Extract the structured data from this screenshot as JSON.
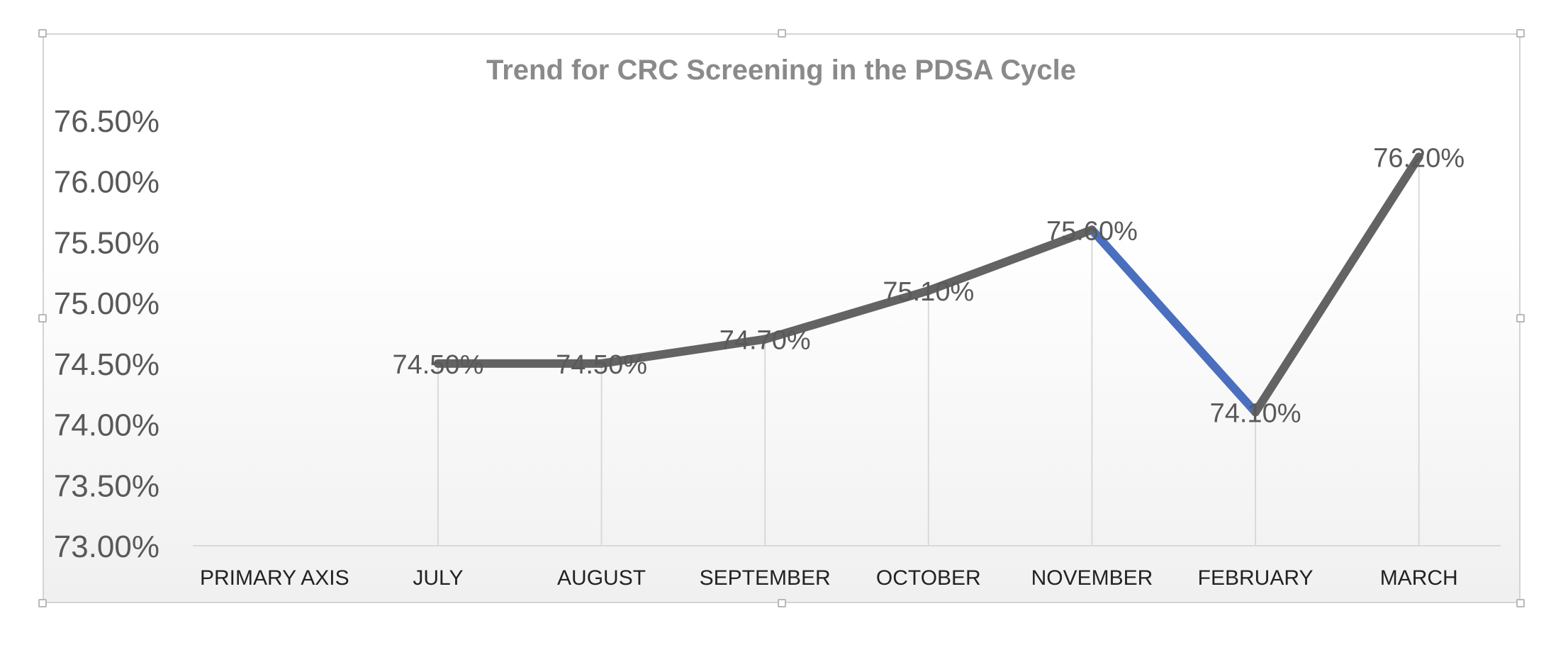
{
  "chart_data": {
    "type": "line",
    "title": "Trend for CRC Screening in the PDSA Cycle",
    "categories": [
      "PRIMARY AXIS",
      "JULY",
      "AUGUST",
      "SEPTEMBER",
      "OCTOBER",
      "NOVEMBER",
      "FEBRUARY",
      "MARCH"
    ],
    "values": [
      null,
      74.5,
      74.5,
      74.7,
      75.1,
      75.6,
      74.1,
      76.2
    ],
    "data_labels": [
      "",
      "74.50%",
      "74.50%",
      "74.70%",
      "75.10%",
      "75.60%",
      "74.10%",
      "76.20%"
    ],
    "ylim": [
      73.0,
      76.5
    ],
    "y_ticks": [
      "73.00%",
      "73.50%",
      "74.00%",
      "74.50%",
      "75.00%",
      "75.50%",
      "76.00%",
      "76.50%"
    ],
    "y_tick_values": [
      73.0,
      73.5,
      74.0,
      74.5,
      75.0,
      75.5,
      76.0,
      76.5
    ],
    "highlight_segment": [
      "NOVEMBER",
      "FEBRUARY"
    ],
    "grid": "vertical",
    "legend": "none"
  },
  "colors": {
    "line": "#636363",
    "highlight": "#4a6fbe",
    "title": "#8a8a8a",
    "text": "#595959",
    "gridline": "#d9d9d9"
  }
}
